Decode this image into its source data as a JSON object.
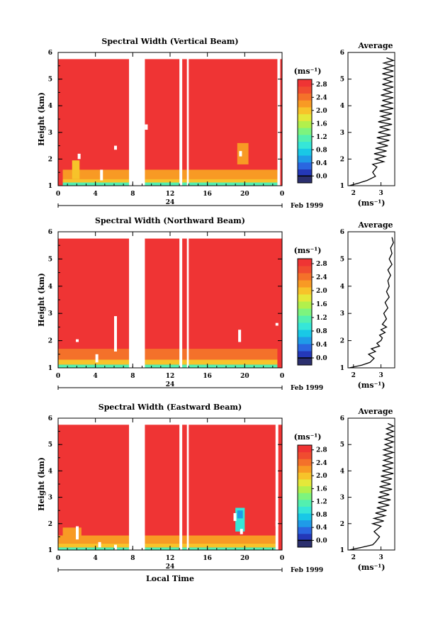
{
  "chart_data": [
    {
      "type": "heatmap",
      "title": "Spectral Width (Vertical Beam)",
      "ylabel": "Height (km)",
      "xlabel": "",
      "x_ticks": [
        "0",
        "4",
        "8",
        "12",
        "16",
        "20",
        "0"
      ],
      "date_label": "24",
      "month_label": "Feb 1999",
      "xlim": [
        0,
        24
      ],
      "ylim": [
        1,
        6
      ],
      "y_ticks": [
        "1",
        "2",
        "3",
        "4",
        "5",
        "6"
      ],
      "colorbar_unit": "(ms⁻¹)",
      "colorbar_ticks": [
        "2.8",
        "2.4",
        "2.0",
        "1.6",
        "1.2",
        "0.8",
        "0.4",
        "0.0"
      ],
      "colorbar_range": [
        0,
        3.0
      ],
      "data_top_km": 5.75,
      "background_value": 3.0,
      "gaps_hours": [
        [
          7.6,
          9.3
        ],
        [
          13.0,
          13.3
        ],
        [
          13.8,
          14.0
        ],
        [
          23.5,
          23.8
        ]
      ],
      "low_layers": [
        {
          "x": [
            0.5,
            23.5
          ],
          "y": [
            1.0,
            1.12
          ],
          "value": 1.4
        },
        {
          "x": [
            0.5,
            23.5
          ],
          "y": [
            1.12,
            1.25
          ],
          "value": 2.0
        },
        {
          "x": [
            0.5,
            23.5
          ],
          "y": [
            1.25,
            1.6
          ],
          "value": 2.4
        },
        {
          "x": [
            1.5,
            2.3
          ],
          "y": [
            1.25,
            1.95
          ],
          "value": 2.0
        },
        {
          "x": [
            19.2,
            20.4
          ],
          "y": [
            1.8,
            2.6
          ],
          "value": 2.2
        }
      ],
      "missing_cells": [
        [
          2.1,
          2.0,
          2.2
        ],
        [
          6.0,
          2.35,
          2.5
        ],
        [
          9.3,
          3.1,
          3.3
        ],
        [
          4.5,
          1.2,
          1.6
        ],
        [
          19.4,
          2.1,
          2.3
        ]
      ],
      "average": {
        "title": "Average",
        "xlabel": "(ms⁻¹)",
        "x_ticks": [
          "2",
          "3"
        ],
        "xlim": [
          1.8,
          3.5
        ],
        "y_km": [
          1.0,
          1.1,
          1.2,
          1.35,
          1.5,
          1.7,
          1.8,
          1.9,
          2.0,
          2.1,
          2.2,
          2.3,
          2.4,
          2.5,
          2.6,
          2.7,
          2.8,
          2.9,
          3.0,
          3.1,
          3.2,
          3.3,
          3.4,
          3.5,
          3.6,
          3.7,
          3.8,
          3.9,
          4.0,
          4.1,
          4.2,
          4.3,
          4.4,
          4.5,
          4.6,
          4.7,
          4.8,
          4.9,
          5.0,
          5.1,
          5.2,
          5.3,
          5.4,
          5.5,
          5.6,
          5.7,
          5.8
        ],
        "x_values": [
          1.85,
          2.2,
          2.5,
          2.8,
          2.7,
          2.85,
          2.7,
          3.1,
          2.8,
          3.15,
          2.75,
          3.2,
          2.8,
          3.25,
          2.9,
          3.3,
          2.85,
          3.35,
          2.9,
          3.3,
          2.95,
          3.4,
          2.9,
          3.35,
          3.0,
          3.4,
          2.95,
          3.45,
          3.0,
          3.4,
          3.05,
          3.45,
          3.0,
          3.4,
          3.1,
          3.45,
          3.05,
          3.4,
          3.1,
          3.45,
          3.05,
          3.45,
          3.1,
          3.45,
          3.1,
          3.45,
          3.2
        ]
      }
    },
    {
      "type": "heatmap",
      "title": "Spectral Width (Northward Beam)",
      "ylabel": "Height (km)",
      "xlabel": "",
      "x_ticks": [
        "0",
        "4",
        "8",
        "12",
        "16",
        "20",
        "0"
      ],
      "date_label": "24",
      "month_label": "Feb 1999",
      "xlim": [
        0,
        24
      ],
      "ylim": [
        1,
        6
      ],
      "y_ticks": [
        "1",
        "2",
        "3",
        "4",
        "5",
        "6"
      ],
      "colorbar_unit": "(ms⁻¹)",
      "colorbar_ticks": [
        "2.8",
        "2.4",
        "2.0",
        "1.6",
        "1.2",
        "0.8",
        "0.4",
        "0.0"
      ],
      "colorbar_range": [
        0,
        3.0
      ],
      "data_top_km": 5.75,
      "background_value": 3.0,
      "gaps_hours": [
        [
          7.6,
          9.3
        ],
        [
          13.0,
          13.3
        ],
        [
          13.8,
          14.0
        ]
      ],
      "low_layers": [
        {
          "x": [
            0.0,
            23.5
          ],
          "y": [
            1.0,
            1.12
          ],
          "value": 1.3
        },
        {
          "x": [
            0.0,
            23.5
          ],
          "y": [
            1.12,
            1.3
          ],
          "value": 2.0
        },
        {
          "x": [
            0.0,
            23.5
          ],
          "y": [
            1.3,
            1.7
          ],
          "value": 2.5
        }
      ],
      "missing_cells": [
        [
          1.9,
          1.95,
          2.05
        ],
        [
          6.0,
          1.6,
          2.9
        ],
        [
          19.3,
          1.95,
          2.4
        ],
        [
          4.0,
          1.2,
          1.5
        ],
        [
          23.3,
          2.55,
          2.65
        ]
      ],
      "average": {
        "title": "Average",
        "xlabel": "(ms⁻¹)",
        "x_ticks": [
          "2",
          "3"
        ],
        "xlim": [
          1.8,
          3.5
        ],
        "y_km": [
          1.0,
          1.1,
          1.2,
          1.35,
          1.5,
          1.6,
          1.7,
          1.8,
          1.9,
          2.0,
          2.1,
          2.2,
          2.3,
          2.4,
          2.5,
          2.6,
          2.8,
          3.0,
          3.2,
          3.4,
          3.6,
          3.8,
          4.0,
          4.2,
          4.4,
          4.6,
          4.8,
          5.0,
          5.2,
          5.4,
          5.6,
          5.8
        ],
        "x_values": [
          1.85,
          2.3,
          2.6,
          2.75,
          2.55,
          2.8,
          2.65,
          2.95,
          2.85,
          3.0,
          3.05,
          2.95,
          3.15,
          3.0,
          3.2,
          3.05,
          3.2,
          3.1,
          3.25,
          3.15,
          3.3,
          3.2,
          3.3,
          3.25,
          3.35,
          3.25,
          3.4,
          3.3,
          3.4,
          3.35,
          3.45,
          3.4
        ]
      }
    },
    {
      "type": "heatmap",
      "title": "Spectral Width (Eastward Beam)",
      "ylabel": "Height (km)",
      "xlabel": "Local Time",
      "x_ticks": [
        "0",
        "4",
        "8",
        "12",
        "16",
        "20",
        "0"
      ],
      "date_label": "24",
      "month_label": "Feb 1999",
      "xlim": [
        0,
        24
      ],
      "ylim": [
        1,
        6
      ],
      "y_ticks": [
        "1",
        "2",
        "3",
        "4",
        "5",
        "6"
      ],
      "colorbar_unit": "(ms⁻¹)",
      "colorbar_ticks": [
        "2.8",
        "2.4",
        "2.0",
        "1.6",
        "1.2",
        "0.8",
        "0.4",
        "0.0"
      ],
      "colorbar_range": [
        0,
        3.0
      ],
      "data_top_km": 5.75,
      "background_value": 3.0,
      "gaps_hours": [
        [
          7.6,
          9.3
        ],
        [
          13.0,
          13.3
        ],
        [
          13.8,
          14.0
        ],
        [
          23.3,
          23.6
        ]
      ],
      "low_layers": [
        {
          "x": [
            0.0,
            23.5
          ],
          "y": [
            1.0,
            1.1
          ],
          "value": 1.4
        },
        {
          "x": [
            0.0,
            23.5
          ],
          "y": [
            1.1,
            1.25
          ],
          "value": 2.0
        },
        {
          "x": [
            0.0,
            23.5
          ],
          "y": [
            1.25,
            1.55
          ],
          "value": 2.4
        },
        {
          "x": [
            0.5,
            2.5
          ],
          "y": [
            1.45,
            1.85
          ],
          "value": 2.2
        },
        {
          "x": [
            19.0,
            20.0
          ],
          "y": [
            1.7,
            2.6
          ],
          "value": 1.2
        },
        {
          "x": [
            19.2,
            19.8
          ],
          "y": [
            2.2,
            2.5
          ],
          "value": 0.7
        }
      ],
      "missing_cells": [
        [
          1.9,
          1.4,
          1.9
        ],
        [
          18.8,
          2.1,
          2.4
        ],
        [
          19.5,
          1.6,
          1.8
        ],
        [
          23.3,
          1.9,
          2.1
        ],
        [
          4.3,
          1.1,
          1.3
        ],
        [
          6.0,
          1.0,
          1.2
        ]
      ],
      "average": {
        "title": "Average",
        "xlabel": "(ms⁻¹)",
        "x_ticks": [
          "2",
          "3"
        ],
        "xlim": [
          1.8,
          3.5
        ],
        "y_km": [
          1.0,
          1.1,
          1.2,
          1.3,
          1.5,
          1.7,
          1.9,
          2.0,
          2.1,
          2.2,
          2.3,
          2.4,
          2.5,
          2.6,
          2.7,
          2.8,
          2.9,
          3.0,
          3.1,
          3.2,
          3.3,
          3.4,
          3.5,
          3.6,
          3.7,
          3.8,
          3.9,
          4.0,
          4.1,
          4.2,
          4.3,
          4.4,
          4.5,
          4.6,
          4.7,
          4.8,
          4.9,
          5.0,
          5.1,
          5.2,
          5.3,
          5.4,
          5.5,
          5.6,
          5.7,
          5.8
        ],
        "x_values": [
          1.85,
          2.3,
          2.7,
          2.8,
          2.95,
          2.75,
          3.0,
          2.7,
          3.1,
          2.75,
          3.15,
          2.8,
          3.2,
          2.85,
          3.3,
          2.9,
          3.35,
          2.9,
          3.3,
          2.95,
          3.4,
          2.95,
          3.35,
          3.0,
          3.4,
          3.0,
          3.45,
          3.05,
          3.4,
          3.05,
          3.45,
          3.1,
          3.4,
          3.1,
          3.45,
          3.1,
          3.4,
          3.15,
          3.45,
          3.15,
          3.45,
          3.2,
          3.45,
          3.2,
          3.45,
          3.25
        ]
      }
    }
  ],
  "colors": {
    "palette": [
      "#2b2f6e",
      "#2438b8",
      "#2a66e0",
      "#1f9be8",
      "#19c8e6",
      "#36e6d8",
      "#53f0b0",
      "#7df47e",
      "#b2f04c",
      "#e4e83a",
      "#f7c32a",
      "#f89a24",
      "#f4712a",
      "#f04c30",
      "#ef3434"
    ]
  }
}
